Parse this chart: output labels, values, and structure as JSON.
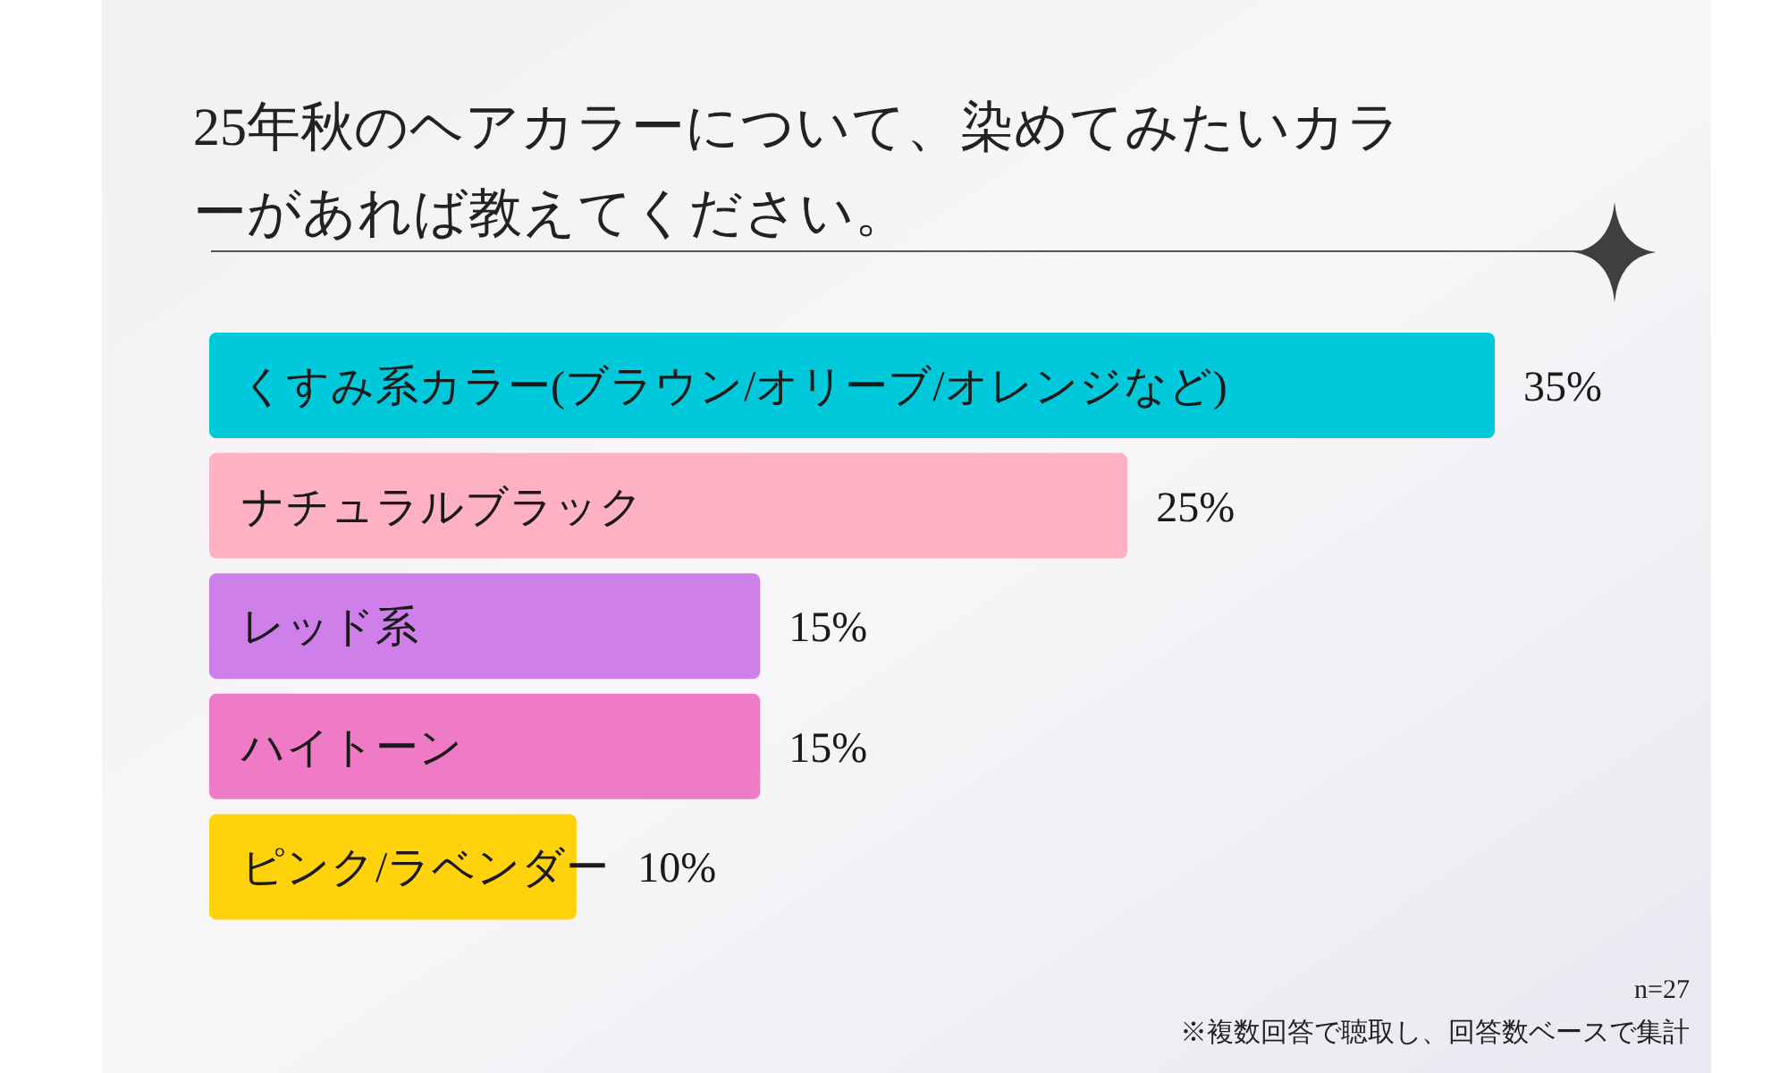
{
  "chart_data": {
    "type": "bar",
    "orientation": "horizontal",
    "title": "25年秋のヘアカラーについて、染めてみたいカラーがあれば教えてください。",
    "categories": [
      "くすみ系カラー(ブラウン/オリーブ/オレンジなど)",
      "ナチュラルブラック",
      "レッド系",
      "ハイトーン",
      "ピンク/ラベンダー"
    ],
    "values": [
      35,
      25,
      15,
      15,
      10
    ],
    "colors": [
      "#00c9db",
      "#ffb1c4",
      "#ce7fe9",
      "#ef7bc6",
      "#ffd20b"
    ],
    "value_labels": [
      "35%",
      "25%",
      "15%",
      "15%",
      "10%"
    ],
    "annotations": [
      "n=27",
      "※複数回答で聴取し、回答数ベースで集計"
    ]
  }
}
